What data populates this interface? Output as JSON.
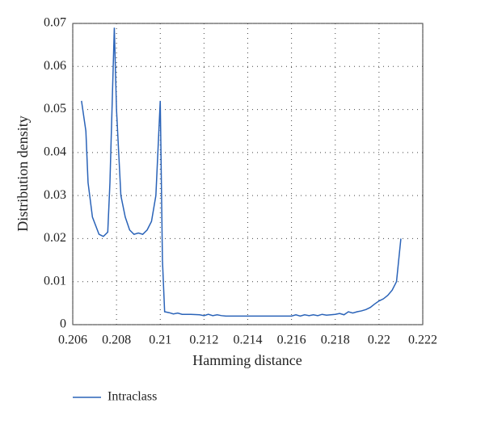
{
  "chart_data": {
    "type": "line",
    "x_label": "Hamming distance",
    "y_label": "Distribution density",
    "xlim": [
      0.206,
      0.222
    ],
    "xticks": [
      0.206,
      0.208,
      0.21,
      0.212,
      0.214,
      0.216,
      0.218,
      0.22,
      0.222
    ],
    "ylim": [
      0,
      0.07
    ],
    "yticks": [
      0,
      0.01,
      0.02,
      0.03,
      0.04,
      0.05,
      0.06,
      0.07
    ],
    "grid": true,
    "legend": "bottom-left",
    "x": [
      0.2064,
      0.2066,
      0.2067,
      0.2069,
      0.2072,
      0.2074,
      0.2076,
      0.2077,
      0.2079,
      0.208,
      0.2081,
      0.2082,
      0.2084,
      0.2086,
      0.2088,
      0.209,
      0.2092,
      0.2094,
      0.2096,
      0.2098,
      0.21,
      0.2101,
      0.2102,
      0.2104,
      0.2106,
      0.2108,
      0.211,
      0.2114,
      0.2118,
      0.212,
      0.2122,
      0.2124,
      0.2126,
      0.2128,
      0.213,
      0.214,
      0.215,
      0.216,
      0.2162,
      0.2164,
      0.2166,
      0.2168,
      0.217,
      0.2172,
      0.2174,
      0.2176,
      0.218,
      0.2182,
      0.2184,
      0.2186,
      0.2188,
      0.219,
      0.2192,
      0.2194,
      0.2196,
      0.2198,
      0.22,
      0.2202,
      0.2204,
      0.2206,
      0.2208,
      0.221
    ],
    "series": [
      {
        "name": "Intraclass",
        "color": "#2a63b8",
        "values": [
          0.052,
          0.045,
          0.033,
          0.025,
          0.021,
          0.0205,
          0.0215,
          0.033,
          0.069,
          0.05,
          0.04,
          0.03,
          0.025,
          0.022,
          0.021,
          0.0213,
          0.021,
          0.022,
          0.024,
          0.03,
          0.052,
          0.015,
          0.003,
          0.0028,
          0.0025,
          0.0027,
          0.0024,
          0.0024,
          0.0023,
          0.0021,
          0.0024,
          0.0021,
          0.0023,
          0.0021,
          0.002,
          0.002,
          0.002,
          0.002,
          0.0023,
          0.002,
          0.0023,
          0.0021,
          0.0023,
          0.0021,
          0.0024,
          0.0022,
          0.0024,
          0.0026,
          0.0023,
          0.003,
          0.0027,
          0.003,
          0.0032,
          0.0035,
          0.004,
          0.0048,
          0.0055,
          0.006,
          0.0068,
          0.008,
          0.01,
          0.02
        ]
      }
    ]
  }
}
